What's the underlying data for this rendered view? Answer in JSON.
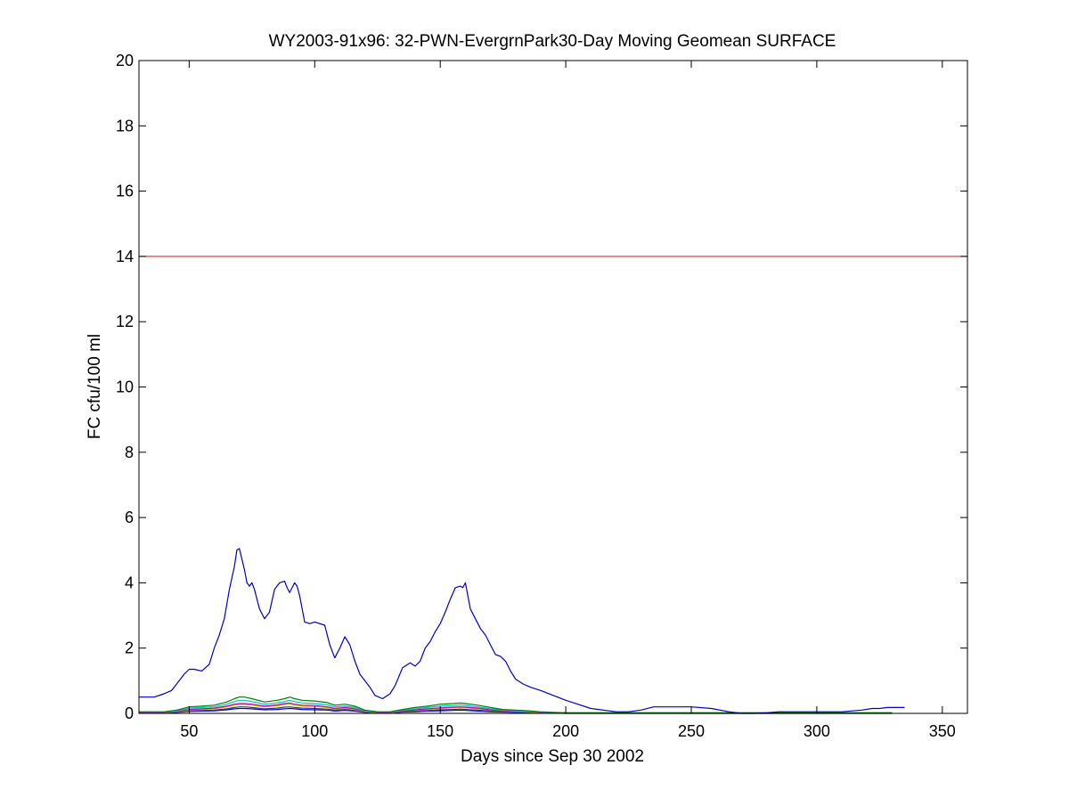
{
  "chart_data": {
    "type": "line",
    "title": "WY2003-91x96: 32-PWN-EvergrnPark30-Day Moving Geomean SURFACE",
    "xlabel": "Days since Sep 30 2002",
    "ylabel": "FC cfu/100 ml",
    "xlim": [
      30,
      360
    ],
    "ylim": [
      0,
      20
    ],
    "xticks": [
      50,
      100,
      150,
      200,
      250,
      300,
      350
    ],
    "yticks": [
      0,
      2,
      4,
      6,
      8,
      10,
      12,
      14,
      16,
      18,
      20
    ],
    "grid": false,
    "legend": "none",
    "reference_line": {
      "y": 14,
      "color": "#ff0000"
    },
    "series": [
      {
        "color": "#0000cc",
        "x": [
          30,
          36,
          40,
          43,
          46,
          48,
          50,
          52,
          55,
          58,
          60,
          62,
          64,
          66,
          68,
          69,
          70,
          72,
          73,
          74,
          75,
          76,
          78,
          80,
          82,
          84,
          86,
          88,
          89,
          90,
          91,
          92,
          93,
          94,
          96,
          98,
          100,
          104,
          106,
          108,
          110,
          112,
          114,
          116,
          118,
          120,
          122,
          124,
          127,
          130,
          132,
          135,
          138,
          140,
          142,
          144,
          146,
          148,
          150,
          152,
          154,
          156,
          158,
          159,
          160,
          162,
          164,
          166,
          168,
          170,
          172,
          174,
          176,
          178,
          180,
          183,
          186,
          190,
          195,
          200,
          210,
          220,
          225,
          230,
          235,
          240,
          250,
          258,
          265,
          270,
          275,
          280,
          285,
          290,
          300,
          310,
          318,
          322,
          325,
          328,
          335
        ],
        "y": [
          0.5,
          0.5,
          0.6,
          0.7,
          1.0,
          1.2,
          1.35,
          1.35,
          1.3,
          1.5,
          2.0,
          2.4,
          2.9,
          3.8,
          4.5,
          5.0,
          5.05,
          4.4,
          4.0,
          3.9,
          4.0,
          3.8,
          3.2,
          2.9,
          3.1,
          3.8,
          4.0,
          4.05,
          3.85,
          3.7,
          3.85,
          4.0,
          3.9,
          3.6,
          2.8,
          2.75,
          2.8,
          2.7,
          2.1,
          1.7,
          2.0,
          2.35,
          2.1,
          1.6,
          1.2,
          1.0,
          0.8,
          0.55,
          0.45,
          0.6,
          0.85,
          1.4,
          1.55,
          1.45,
          1.6,
          2.0,
          2.2,
          2.5,
          2.75,
          3.1,
          3.5,
          3.85,
          3.9,
          3.85,
          4.0,
          3.2,
          2.9,
          2.6,
          2.4,
          2.1,
          1.8,
          1.75,
          1.6,
          1.3,
          1.05,
          0.9,
          0.8,
          0.7,
          0.55,
          0.4,
          0.15,
          0.05,
          0.05,
          0.1,
          0.2,
          0.2,
          0.2,
          0.15,
          0.05,
          0.0,
          0.0,
          0.02,
          0.05,
          0.05,
          0.05,
          0.05,
          0.1,
          0.15,
          0.15,
          0.18,
          0.18
        ]
      },
      {
        "color": "#008000",
        "x": [
          30,
          40,
          45,
          50,
          55,
          60,
          65,
          68,
          70,
          72,
          75,
          80,
          85,
          88,
          90,
          92,
          95,
          100,
          105,
          108,
          112,
          116,
          120,
          125,
          130,
          135,
          140,
          145,
          150,
          155,
          158,
          160,
          165,
          170,
          175,
          180,
          185,
          190,
          195,
          200,
          220,
          260,
          300,
          330
        ],
        "y": [
          0.05,
          0.05,
          0.1,
          0.2,
          0.22,
          0.25,
          0.35,
          0.45,
          0.5,
          0.5,
          0.45,
          0.35,
          0.4,
          0.45,
          0.5,
          0.45,
          0.4,
          0.38,
          0.33,
          0.25,
          0.28,
          0.22,
          0.1,
          0.05,
          0.05,
          0.12,
          0.18,
          0.22,
          0.28,
          0.3,
          0.32,
          0.3,
          0.25,
          0.18,
          0.12,
          0.1,
          0.08,
          0.05,
          0.03,
          0.02,
          0.02,
          0.02,
          0.02,
          0.02
        ]
      },
      {
        "color": "#00bfbf",
        "x": [
          30,
          40,
          45,
          50,
          55,
          60,
          65,
          68,
          70,
          72,
          75,
          80,
          85,
          88,
          90,
          92,
          95,
          100,
          105,
          108,
          112,
          116,
          120,
          125,
          130,
          135,
          140,
          145,
          150,
          155,
          158,
          160,
          165,
          170,
          175,
          180,
          185,
          190,
          195,
          200,
          220,
          260,
          300,
          330
        ],
        "y": [
          0.04,
          0.04,
          0.08,
          0.16,
          0.18,
          0.2,
          0.28,
          0.36,
          0.4,
          0.4,
          0.36,
          0.28,
          0.32,
          0.36,
          0.4,
          0.36,
          0.32,
          0.3,
          0.26,
          0.2,
          0.22,
          0.18,
          0.08,
          0.04,
          0.04,
          0.1,
          0.14,
          0.18,
          0.22,
          0.24,
          0.26,
          0.24,
          0.2,
          0.14,
          0.1,
          0.08,
          0.06,
          0.04,
          0.02,
          0.02,
          0.02,
          0.02,
          0.02,
          0.02
        ]
      },
      {
        "color": "#bf00bf",
        "x": [
          30,
          40,
          45,
          50,
          55,
          60,
          65,
          68,
          70,
          72,
          75,
          80,
          85,
          88,
          90,
          92,
          95,
          100,
          105,
          108,
          112,
          116,
          120,
          125,
          130,
          135,
          140,
          145,
          150,
          155,
          158,
          160,
          165,
          170,
          175,
          180,
          185,
          190,
          195,
          200,
          220,
          260,
          300,
          330
        ],
        "y": [
          0.03,
          0.03,
          0.06,
          0.12,
          0.14,
          0.16,
          0.22,
          0.28,
          0.3,
          0.3,
          0.28,
          0.22,
          0.26,
          0.3,
          0.32,
          0.28,
          0.25,
          0.24,
          0.2,
          0.15,
          0.18,
          0.14,
          0.06,
          0.03,
          0.03,
          0.08,
          0.11,
          0.14,
          0.17,
          0.19,
          0.2,
          0.19,
          0.16,
          0.11,
          0.08,
          0.06,
          0.05,
          0.03,
          0.02,
          0.01,
          0.01,
          0.01,
          0.01,
          0.01
        ]
      },
      {
        "color": "#bfbf00",
        "x": [
          30,
          40,
          45,
          50,
          55,
          60,
          65,
          68,
          70,
          72,
          75,
          80,
          85,
          88,
          90,
          92,
          95,
          100,
          105,
          108,
          112,
          116,
          120,
          125,
          130,
          135,
          140,
          145,
          150,
          155,
          158,
          160,
          165,
          170,
          175,
          180,
          185,
          190,
          195,
          200,
          220,
          260,
          300,
          330
        ],
        "y": [
          0.03,
          0.03,
          0.05,
          0.1,
          0.12,
          0.14,
          0.2,
          0.25,
          0.27,
          0.27,
          0.25,
          0.2,
          0.23,
          0.27,
          0.28,
          0.25,
          0.22,
          0.21,
          0.18,
          0.13,
          0.16,
          0.12,
          0.05,
          0.02,
          0.02,
          0.07,
          0.1,
          0.12,
          0.15,
          0.17,
          0.18,
          0.17,
          0.14,
          0.1,
          0.07,
          0.05,
          0.04,
          0.02,
          0.01,
          0.01,
          0.01,
          0.01,
          0.01,
          0.01
        ]
      },
      {
        "color": "#404040",
        "x": [
          30,
          40,
          45,
          50,
          55,
          60,
          65,
          68,
          70,
          72,
          75,
          80,
          85,
          88,
          90,
          92,
          95,
          100,
          105,
          108,
          112,
          116,
          120,
          125,
          130,
          135,
          140,
          145,
          150,
          155,
          158,
          160,
          165,
          170,
          175,
          180,
          185,
          190,
          195,
          200,
          220,
          260,
          300,
          330
        ],
        "y": [
          0.02,
          0.02,
          0.04,
          0.08,
          0.09,
          0.1,
          0.14,
          0.18,
          0.2,
          0.2,
          0.18,
          0.14,
          0.16,
          0.19,
          0.2,
          0.18,
          0.16,
          0.15,
          0.13,
          0.1,
          0.12,
          0.09,
          0.04,
          0.02,
          0.02,
          0.05,
          0.07,
          0.09,
          0.11,
          0.12,
          0.13,
          0.12,
          0.1,
          0.07,
          0.05,
          0.04,
          0.03,
          0.02,
          0.01,
          0.01,
          0.01,
          0.01,
          0.01,
          0.01
        ]
      },
      {
        "color": "#0000ff",
        "x": [
          30,
          40,
          45,
          50,
          55,
          60,
          65,
          68,
          70,
          72,
          75,
          80,
          85,
          88,
          90,
          92,
          95,
          100,
          105,
          108,
          112,
          116,
          120,
          125,
          130,
          135,
          140,
          145,
          150,
          155,
          158,
          160,
          165,
          170,
          175,
          180,
          185,
          190,
          195,
          200,
          220,
          260,
          300,
          330
        ],
        "y": [
          0.01,
          0.01,
          0.03,
          0.06,
          0.07,
          0.08,
          0.11,
          0.14,
          0.15,
          0.15,
          0.14,
          0.11,
          0.12,
          0.14,
          0.15,
          0.14,
          0.12,
          0.11,
          0.1,
          0.07,
          0.09,
          0.07,
          0.03,
          0.01,
          0.01,
          0.04,
          0.05,
          0.07,
          0.08,
          0.09,
          0.1,
          0.09,
          0.07,
          0.05,
          0.04,
          0.03,
          0.02,
          0.01,
          0.01,
          0.0,
          0.0,
          0.0,
          0.0,
          0.0
        ]
      }
    ]
  }
}
